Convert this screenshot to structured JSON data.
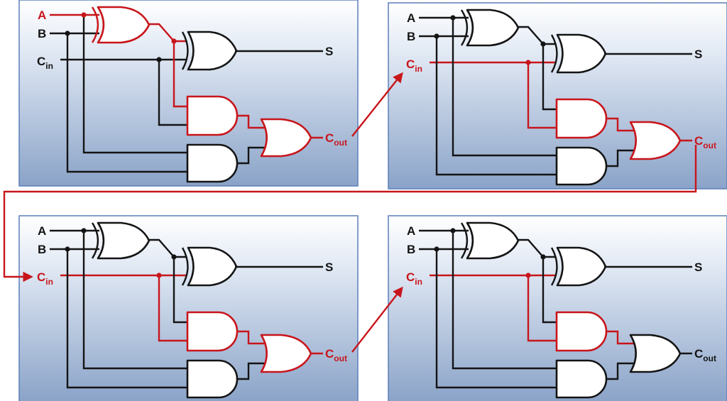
{
  "labels": {
    "a": "A",
    "b": "B",
    "c_main": "C",
    "c_in_sub": "in",
    "c_out_sub": "out",
    "s": "S"
  },
  "colors": {
    "wire_default": "#141414",
    "wire_active": "#c8151b",
    "panel_top": "#ffffff",
    "panel_bottom": "#8aa3c8",
    "panel_border": "#5b7fb8"
  },
  "panels": [
    {
      "id": "adder-1",
      "active": [
        "a",
        "xor1",
        "and1",
        "or",
        "cout"
      ]
    },
    {
      "id": "adder-2",
      "active": [
        "cin",
        "and1",
        "or",
        "cout"
      ]
    },
    {
      "id": "adder-3",
      "active": [
        "cin",
        "and1",
        "or",
        "cout"
      ]
    },
    {
      "id": "adder-4",
      "active": [
        "cin",
        "and1"
      ]
    }
  ],
  "carry_links": [
    {
      "from": "adder-1",
      "to": "adder-2"
    },
    {
      "from": "adder-2",
      "to": "adder-3"
    },
    {
      "from": "adder-3",
      "to": "adder-4"
    }
  ]
}
